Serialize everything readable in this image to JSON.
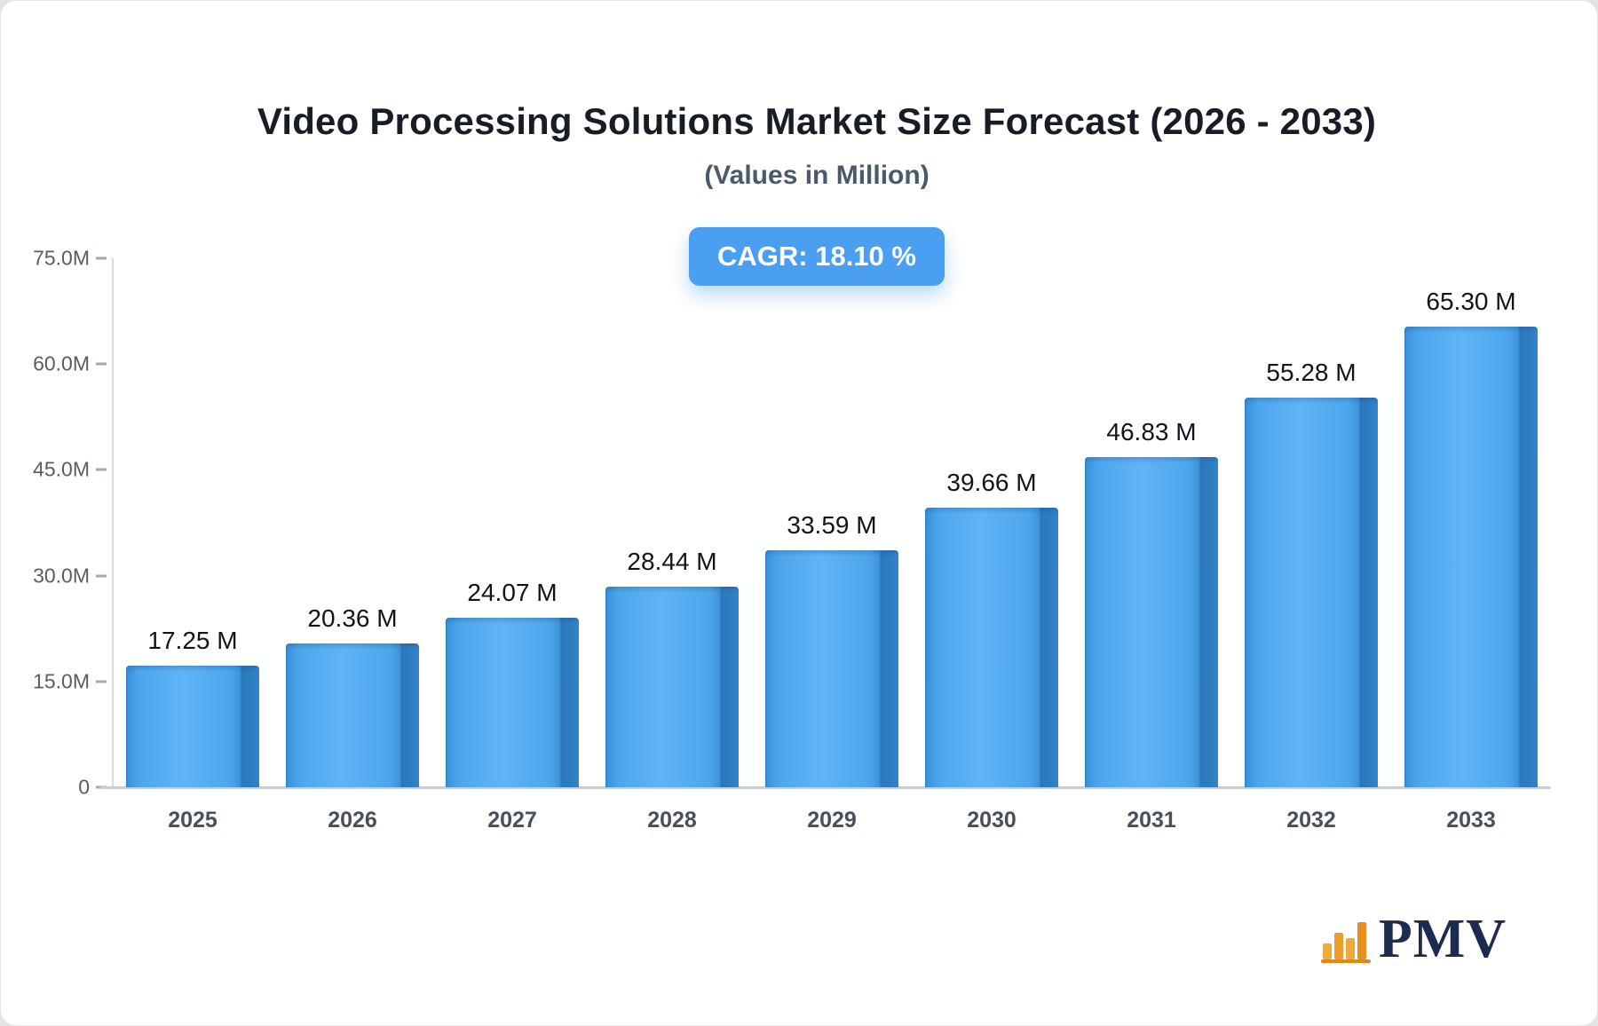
{
  "header": {
    "title": "Video Processing Solutions Market Size Forecast (2026 - 2033)",
    "subtitle": "(Values in Million)",
    "cagr_badge": "CAGR: 18.10 %"
  },
  "logo": {
    "text": "PMV",
    "icon": "bar-chart-icon",
    "text_color": "#1d2b50",
    "icon_color": "#EE9D2B"
  },
  "chart_data": {
    "type": "bar",
    "title": "Video Processing Solutions Market Size Forecast (2026 - 2033)",
    "subtitle": "(Values in Million)",
    "unit": "Million",
    "categories": [
      "2025",
      "2026",
      "2027",
      "2028",
      "2029",
      "2030",
      "2031",
      "2032",
      "2033"
    ],
    "values": [
      17.25,
      20.36,
      24.07,
      28.44,
      33.59,
      39.66,
      46.83,
      55.28,
      65.3
    ],
    "value_labels": [
      "17.25 M",
      "20.36 M",
      "24.07 M",
      "28.44 M",
      "33.59 M",
      "39.66 M",
      "46.83 M",
      "55.28 M",
      "65.30 M"
    ],
    "annotation": "CAGR: 18.10 %",
    "xlabel": "",
    "ylabel": "",
    "ylim": [
      0,
      75
    ],
    "yticks": [
      {
        "label": "0",
        "value": 0
      },
      {
        "label": "15.0M",
        "value": 15
      },
      {
        "label": "30.0M",
        "value": 30
      },
      {
        "label": "45.0M",
        "value": 45
      },
      {
        "label": "60.0M",
        "value": 60
      },
      {
        "label": "75.0M",
        "value": 75
      }
    ],
    "grid": false,
    "legend": false,
    "bar_color": "#4DA6EC",
    "bar_side_color": "#2B77BA",
    "badge_color": "#4B9FF2"
  }
}
